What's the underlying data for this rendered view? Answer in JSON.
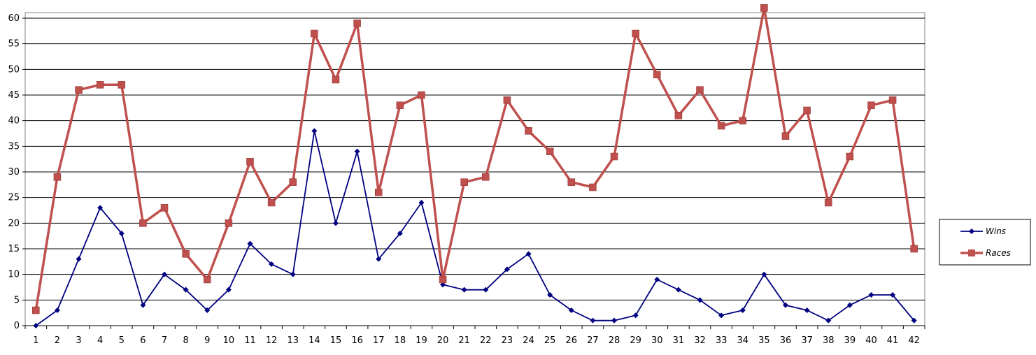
{
  "chart_data": {
    "type": "line",
    "title": "",
    "xlabel": "",
    "ylabel": "",
    "categories": [
      "1",
      "2",
      "3",
      "4",
      "5",
      "6",
      "7",
      "8",
      "9",
      "10",
      "11",
      "12",
      "13",
      "14",
      "15",
      "16",
      "17",
      "18",
      "19",
      "20",
      "21",
      "22",
      "23",
      "24",
      "25",
      "26",
      "27",
      "28",
      "29",
      "30",
      "31",
      "32",
      "33",
      "34",
      "35",
      "36",
      "37",
      "38",
      "39",
      "40",
      "41",
      "42"
    ],
    "ylim": [
      0,
      60
    ],
    "yticks": [
      "0",
      "5",
      "10",
      "15",
      "20",
      "25",
      "30",
      "35",
      "40",
      "45",
      "50",
      "55",
      "60"
    ],
    "grid": true,
    "legend_position": "right",
    "series": [
      {
        "name": "Wins",
        "color": "#000080",
        "marker": "diamond",
        "values": [
          0,
          3,
          13,
          23,
          18,
          4,
          10,
          7,
          3,
          7,
          16,
          12,
          10,
          38,
          20,
          34,
          13,
          18,
          24,
          8,
          7,
          7,
          11,
          14,
          6,
          3,
          1,
          1,
          2,
          9,
          7,
          5,
          2,
          3,
          10,
          4,
          3,
          1,
          4,
          6,
          6,
          1
        ]
      },
      {
        "name": "Races",
        "color": "#C0504D",
        "marker": "square",
        "values": [
          3,
          29,
          46,
          47,
          47,
          20,
          23,
          14,
          9,
          20,
          32,
          24,
          28,
          57,
          48,
          59,
          26,
          43,
          45,
          9,
          28,
          29,
          44,
          38,
          34,
          28,
          27,
          33,
          57,
          49,
          41,
          46,
          39,
          40,
          62,
          37,
          42,
          24,
          33,
          43,
          44,
          15
        ]
      }
    ]
  }
}
